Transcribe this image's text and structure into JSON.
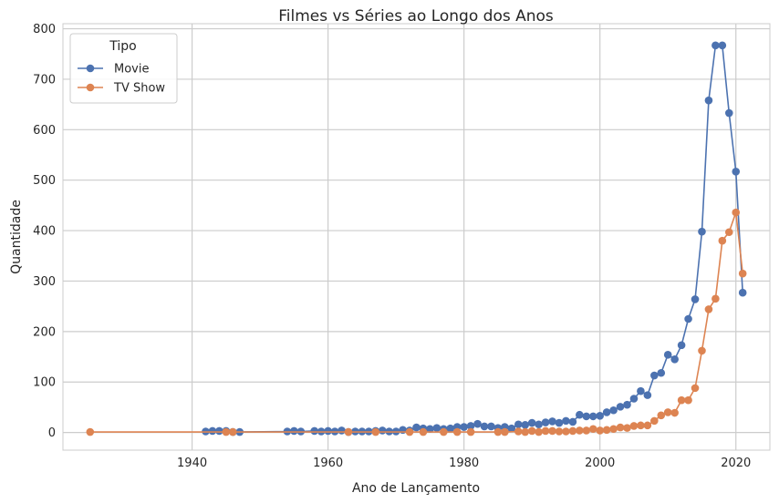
{
  "chart_data": {
    "type": "line",
    "title": "Filmes vs Séries ao Longo dos Anos",
    "xlabel": "Ano de Lançamento",
    "ylabel": "Quantidade",
    "xlim": [
      1921,
      2025
    ],
    "ylim": [
      -35,
      810
    ],
    "xticks": [
      1940,
      1960,
      1980,
      2000,
      2020
    ],
    "yticks": [
      0,
      100,
      200,
      300,
      400,
      500,
      600,
      700,
      800
    ],
    "grid": true,
    "legend": {
      "title": "Tipo",
      "placement": "top-left"
    },
    "colors": {
      "Movie": "#4c72b0",
      "TV Show": "#dd8452",
      "grid": "#cccccc",
      "spine": "#cccccc"
    },
    "series": [
      {
        "name": "Movie",
        "x": [
          1942,
          1943,
          1944,
          1945,
          1946,
          1947,
          1954,
          1955,
          1956,
          1958,
          1959,
          1960,
          1961,
          1962,
          1963,
          1964,
          1965,
          1966,
          1967,
          1968,
          1969,
          1970,
          1971,
          1972,
          1973,
          1974,
          1975,
          1976,
          1977,
          1978,
          1979,
          1980,
          1981,
          1982,
          1983,
          1984,
          1985,
          1986,
          1987,
          1988,
          1989,
          1990,
          1991,
          1992,
          1993,
          1994,
          1995,
          1996,
          1997,
          1998,
          1999,
          2000,
          2001,
          2002,
          2003,
          2004,
          2005,
          2006,
          2007,
          2008,
          2009,
          2010,
          2011,
          2012,
          2013,
          2014,
          2015,
          2016,
          2017,
          2018,
          2019,
          2020,
          2021
        ],
        "y": [
          2,
          3,
          3,
          3,
          1,
          1,
          2,
          3,
          2,
          3,
          2,
          3,
          2,
          4,
          1,
          2,
          2,
          2,
          3,
          4,
          2,
          2,
          5,
          4,
          10,
          8,
          7,
          9,
          7,
          8,
          11,
          11,
          13,
          17,
          12,
          12,
          9,
          11,
          8,
          16,
          15,
          19,
          16,
          20,
          22,
          19,
          23,
          21,
          35,
          32,
          32,
          33,
          40,
          44,
          51,
          55,
          67,
          82,
          74,
          113,
          118,
          154,
          145,
          173,
          225,
          264,
          398,
          658,
          767,
          767,
          633,
          517,
          277
        ]
      },
      {
        "name": "TV Show",
        "x": [
          1925,
          1945,
          1946,
          1963,
          1967,
          1972,
          1974,
          1977,
          1979,
          1981,
          1985,
          1986,
          1988,
          1989,
          1990,
          1991,
          1992,
          1993,
          1994,
          1995,
          1996,
          1997,
          1998,
          1999,
          2000,
          2001,
          2002,
          2003,
          2004,
          2005,
          2006,
          2007,
          2008,
          2009,
          2010,
          2011,
          2012,
          2013,
          2014,
          2015,
          2016,
          2017,
          2018,
          2019,
          2020,
          2021
        ],
        "y": [
          1,
          1,
          1,
          1,
          1,
          1,
          1,
          1,
          1,
          1,
          1,
          1,
          2,
          1,
          3,
          1,
          3,
          3,
          2,
          2,
          3,
          4,
          4,
          7,
          4,
          5,
          7,
          10,
          9,
          13,
          14,
          14,
          23,
          34,
          40,
          39,
          64,
          64,
          88,
          162,
          244,
          265,
          380,
          397,
          436,
          315
        ]
      }
    ]
  }
}
